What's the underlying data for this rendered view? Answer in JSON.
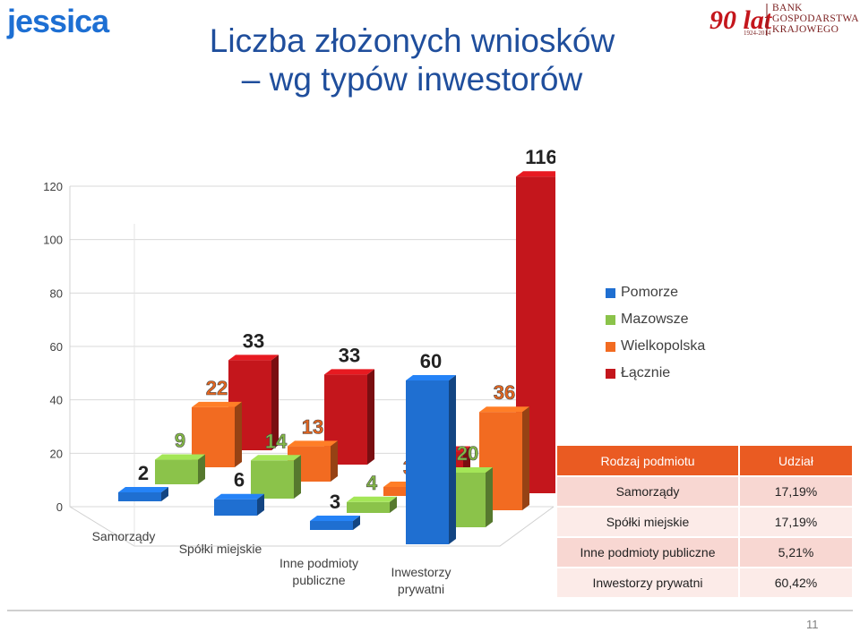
{
  "logos": {
    "left": "jessica",
    "right_text": [
      "BANK",
      "GOSPODARSTWA",
      "KRAJOWEGO"
    ],
    "right_mark": "90 lat",
    "right_years": "1924-2014"
  },
  "title_line1": "Liczba złożonych wniosków",
  "title_line2": "– wg typów inwestorów",
  "chart_data": {
    "type": "bar",
    "categories": [
      "Samorządy",
      "Spółki miejskie",
      "Inne podmioty publiczne",
      "Inwestorzy prywatni"
    ],
    "series": [
      {
        "name": "Pomorze",
        "values": [
          2,
          6,
          3,
          60
        ],
        "color": "#1f6fd1"
      },
      {
        "name": "Mazowsze",
        "values": [
          9,
          14,
          4,
          20
        ],
        "color": "#8bc34a"
      },
      {
        "name": "Wielkopolska",
        "values": [
          22,
          13,
          3,
          36
        ],
        "color": "#f26b21"
      },
      {
        "name": "Łącznie",
        "values": [
          33,
          33,
          10,
          116
        ],
        "color": "#c4161c"
      }
    ],
    "yticks": [
      0,
      20,
      40,
      60,
      80,
      100,
      120
    ],
    "ylim": [
      0,
      120
    ],
    "grid": true,
    "legend": "right"
  },
  "table": {
    "headers": [
      "Rodzaj podmiotu",
      "Udział"
    ],
    "rows": [
      [
        "Samorządy",
        "17,19%"
      ],
      [
        "Spółki miejskie",
        "17,19%"
      ],
      [
        "Inne podmioty publiczne",
        "5,21%"
      ],
      [
        "Inwestorzy prywatni",
        "60,42%"
      ]
    ]
  },
  "page_number": "11"
}
